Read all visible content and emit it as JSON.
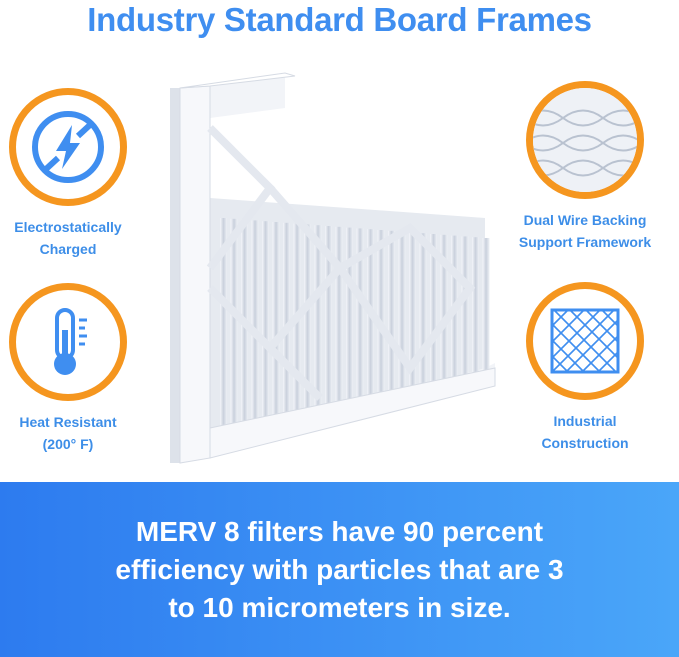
{
  "title": "Industry Standard Board Frames",
  "features": [
    {
      "icon": "no-static-icon",
      "line1": "Electrostatically",
      "line2": "Charged"
    },
    {
      "icon": "thermometer-icon",
      "line1": "Heat Resistant",
      "line2": "(200° F)"
    },
    {
      "icon": "wire-mesh-icon",
      "line1": "Dual Wire Backing",
      "line2": "Support Framework"
    },
    {
      "icon": "grid-frame-icon",
      "line1": "Industrial",
      "line2": "Construction"
    }
  ],
  "banner": {
    "line1": "MERV 8 filters have 90 percent",
    "line2": "efficiency with particles that are 3",
    "line3": "to 10 micrometers in size."
  },
  "colors": {
    "accent_blue": "#3f8ef0",
    "ring_orange": "#f5961f",
    "banner_start": "#2d7bef",
    "banner_end": "#4aa6f9"
  }
}
